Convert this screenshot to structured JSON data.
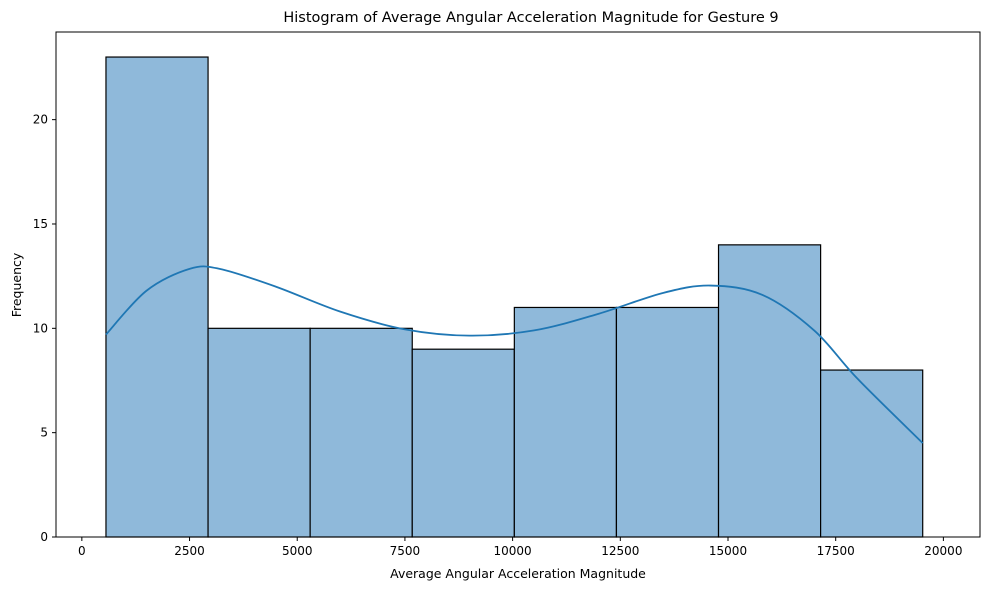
{
  "chart_data": {
    "type": "bar",
    "title": "Histogram of Average Angular Acceleration Magnitude for Gesture 9",
    "xlabel": "Average Angular Acceleration Magnitude",
    "ylabel": "Frequency",
    "xlim": [
      -600,
      20850
    ],
    "ylim": [
      0,
      24.2
    ],
    "grid": false,
    "bins": [
      {
        "start": 560,
        "end": 2930,
        "count": 23
      },
      {
        "start": 2930,
        "end": 5300,
        "count": 10
      },
      {
        "start": 5300,
        "end": 7670,
        "count": 10
      },
      {
        "start": 7670,
        "end": 10040,
        "count": 9
      },
      {
        "start": 10040,
        "end": 12410,
        "count": 11
      },
      {
        "start": 12410,
        "end": 14780,
        "count": 11
      },
      {
        "start": 14780,
        "end": 17150,
        "count": 14
      },
      {
        "start": 17150,
        "end": 19520,
        "count": 8
      }
    ],
    "kde": {
      "name": "KDE",
      "x": [
        560,
        1500,
        2500,
        3200,
        4500,
        6000,
        7500,
        9000,
        10500,
        12000,
        13500,
        14600,
        15800,
        17000,
        18000,
        19520
      ],
      "y": [
        9.7,
        11.8,
        12.85,
        12.85,
        12.0,
        10.8,
        9.95,
        9.65,
        9.9,
        10.7,
        11.7,
        12.05,
        11.6,
        9.9,
        7.6,
        4.5
      ]
    },
    "xticks": [
      0,
      2500,
      5000,
      7500,
      10000,
      12500,
      15000,
      17500,
      20000
    ],
    "yticks": [
      0,
      5,
      10,
      15,
      20
    ],
    "colors": {
      "bar_fill": "#8fb9da",
      "bar_edge": "#000000",
      "kde_line": "#1f77b4"
    }
  }
}
